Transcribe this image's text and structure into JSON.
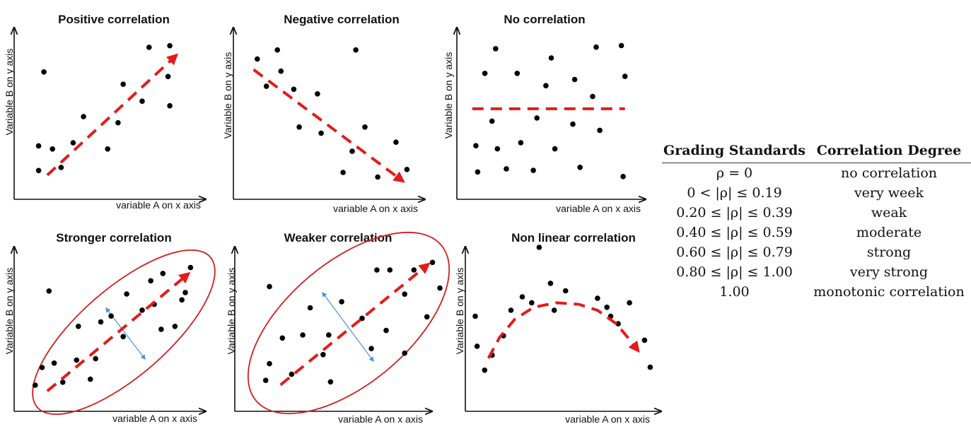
{
  "chart_data": [
    {
      "type": "scatter",
      "title": "Positive correlation",
      "xlabel": "variable A on x axis",
      "ylabel": "Variable B on y axis",
      "xlim": [
        0,
        10
      ],
      "ylim": [
        0,
        10
      ],
      "points": [
        [
          0.6,
          1.5
        ],
        [
          0.6,
          3.1
        ],
        [
          0.9,
          7.9
        ],
        [
          1.4,
          2.9
        ],
        [
          1.9,
          1.7
        ],
        [
          2.6,
          3.3
        ],
        [
          3.2,
          5.0
        ],
        [
          4.6,
          2.9
        ],
        [
          5.2,
          4.6
        ],
        [
          5.5,
          7.1
        ],
        [
          6.6,
          6.0
        ],
        [
          7.0,
          9.5
        ],
        [
          8.2,
          9.6
        ],
        [
          8.2,
          5.7
        ],
        [
          8.1,
          7.6
        ]
      ],
      "trend": [
        [
          1.1,
          1.2
        ],
        [
          8.5,
          8.9
        ]
      ]
    },
    {
      "type": "scatter",
      "title": "Negative correlation",
      "xlabel": "variable A on x axis",
      "ylabel": "Variable B on y axis",
      "xlim": [
        0,
        10
      ],
      "ylim": [
        0,
        10
      ],
      "points": [
        [
          1.0,
          8.9
        ],
        [
          1.5,
          7.1
        ],
        [
          2.1,
          9.5
        ],
        [
          2.3,
          8.1
        ],
        [
          3.0,
          6.9
        ],
        [
          3.3,
          4.4
        ],
        [
          4.3,
          6.6
        ],
        [
          4.5,
          4.0
        ],
        [
          5.7,
          1.4
        ],
        [
          6.2,
          2.8
        ],
        [
          6.4,
          9.5
        ],
        [
          6.9,
          4.4
        ],
        [
          7.6,
          1.1
        ],
        [
          8.6,
          3.4
        ],
        [
          9.2,
          1.6
        ]
      ],
      "trend": [
        [
          0.8,
          8.2
        ],
        [
          8.9,
          0.9
        ]
      ]
    },
    {
      "type": "scatter",
      "title": "No correlation",
      "xlabel": "variable A on x axis",
      "ylabel": "Variable B on y axis",
      "xlim": [
        0,
        10
      ],
      "ylim": [
        0,
        10
      ],
      "points": [
        [
          0.9,
          3.2
        ],
        [
          1.0,
          1.5
        ],
        [
          1.4,
          7.9
        ],
        [
          1.8,
          4.8
        ],
        [
          2.0,
          9.5
        ],
        [
          2.1,
          3.0
        ],
        [
          2.6,
          1.7
        ],
        [
          3.2,
          7.9
        ],
        [
          3.4,
          3.4
        ],
        [
          4.1,
          1.6
        ],
        [
          4.3,
          5.0
        ],
        [
          4.8,
          7.1
        ],
        [
          5.1,
          8.9
        ],
        [
          5.3,
          3.0
        ],
        [
          6.3,
          4.6
        ],
        [
          6.4,
          7.5
        ],
        [
          6.7,
          1.8
        ],
        [
          7.4,
          6.4
        ],
        [
          7.6,
          9.6
        ],
        [
          7.8,
          4.2
        ],
        [
          9.0,
          9.7
        ],
        [
          9.1,
          1.2
        ],
        [
          9.2,
          7.7
        ]
      ],
      "trend": [
        [
          0.7,
          5.6
        ],
        [
          9.2,
          5.6
        ]
      ]
    },
    {
      "type": "scatter",
      "title": "Stronger correlation",
      "xlabel": "variable A on x axis",
      "ylabel": "Variable B on y axis",
      "xlim": [
        0,
        10
      ],
      "ylim": [
        0,
        10
      ],
      "points": [
        [
          0.4,
          1.3
        ],
        [
          0.8,
          2.5
        ],
        [
          1.2,
          7.7
        ],
        [
          1.5,
          2.8
        ],
        [
          2.0,
          1.5
        ],
        [
          2.8,
          3.0
        ],
        [
          2.9,
          5.3
        ],
        [
          3.6,
          1.7
        ],
        [
          3.9,
          3.1
        ],
        [
          4.2,
          5.6
        ],
        [
          4.8,
          6.0
        ],
        [
          5.5,
          4.6
        ],
        [
          5.7,
          7.5
        ],
        [
          6.6,
          6.4
        ],
        [
          7.1,
          8.4
        ],
        [
          7.3,
          6.8
        ],
        [
          7.7,
          5.1
        ],
        [
          7.8,
          8.9
        ],
        [
          8.5,
          5.3
        ],
        [
          8.9,
          7.1
        ],
        [
          9.1,
          7.6
        ],
        [
          9.4,
          9.3
        ]
      ],
      "trend": [
        [
          1.1,
          0.9
        ],
        [
          9.2,
          8.8
        ]
      ]
    },
    {
      "type": "scatter",
      "title": "Weaker correlation",
      "xlabel": "variable A on x axis",
      "ylabel": "Variable B on y axis",
      "xlim": [
        0,
        10
      ],
      "ylim": [
        0,
        10
      ],
      "points": [
        [
          0.6,
          1.3
        ],
        [
          0.8,
          2.4
        ],
        [
          0.8,
          7.5
        ],
        [
          1.5,
          4.1
        ],
        [
          2.0,
          1.7
        ],
        [
          2.6,
          4.3
        ],
        [
          3.0,
          6.1
        ],
        [
          3.7,
          3.0
        ],
        [
          4.0,
          4.3
        ],
        [
          4.1,
          1.2
        ],
        [
          4.7,
          6.5
        ],
        [
          5.8,
          5.4
        ],
        [
          6.3,
          3.4
        ],
        [
          6.6,
          8.6
        ],
        [
          7.1,
          4.6
        ],
        [
          7.3,
          8.6
        ],
        [
          8.1,
          3.1
        ],
        [
          8.1,
          7.0
        ],
        [
          8.6,
          8.6
        ],
        [
          9.3,
          5.5
        ],
        [
          9.6,
          9.1
        ],
        [
          10.0,
          7.4
        ]
      ],
      "trend": [
        [
          1.4,
          1.0
        ],
        [
          9.3,
          8.9
        ]
      ]
    },
    {
      "type": "scatter",
      "title": "Non linear correlation",
      "xlabel": "variable A on x axis",
      "ylabel": "Variable B on y axis",
      "xlim": [
        0,
        10
      ],
      "ylim": [
        0,
        10
      ],
      "points": [
        [
          0.3,
          5.4
        ],
        [
          0.4,
          3.4
        ],
        [
          0.8,
          1.8
        ],
        [
          1.2,
          2.8
        ],
        [
          1.8,
          4.1
        ],
        [
          2.2,
          5.8
        ],
        [
          2.8,
          6.7
        ],
        [
          3.3,
          6.3
        ],
        [
          3.7,
          10.0
        ],
        [
          4.3,
          7.6
        ],
        [
          4.5,
          5.8
        ],
        [
          5.1,
          7.1
        ],
        [
          6.8,
          6.6
        ],
        [
          7.3,
          6.0
        ],
        [
          7.5,
          5.4
        ],
        [
          7.9,
          4.9
        ],
        [
          8.5,
          6.3
        ],
        [
          8.8,
          3.4
        ],
        [
          9.3,
          3.8
        ],
        [
          9.6,
          2.0
        ]
      ],
      "trend_curve": [
        [
          1.0,
          2.6
        ],
        [
          1.6,
          4.0
        ],
        [
          2.4,
          5.2
        ],
        [
          3.4,
          6.0
        ],
        [
          4.6,
          6.3
        ],
        [
          5.8,
          6.2
        ],
        [
          6.8,
          5.8
        ],
        [
          7.8,
          4.9
        ],
        [
          8.4,
          4.0
        ],
        [
          8.9,
          3.2
        ]
      ]
    }
  ],
  "grading_table": {
    "headers": [
      "Grading Standards",
      "Correlation Degree"
    ],
    "rows": [
      [
        "ρ = 0",
        "no correlation"
      ],
      [
        "0 < |ρ| ≤ 0.19",
        "very week"
      ],
      [
        "0.20 ≤ |ρ| ≤ 0.39",
        "weak"
      ],
      [
        "0.40 ≤ |ρ| ≤ 0.59",
        "moderate"
      ],
      [
        "0.60 ≤ |ρ| ≤ 0.79",
        "strong"
      ],
      [
        "0.80 ≤ |ρ| ≤ 1.00",
        "very strong"
      ],
      [
        "1.00",
        "monotonic correlation"
      ]
    ]
  },
  "colors": {
    "trend": "#e31b1b",
    "ellipse": "#d21f1f",
    "spread_arrow": "#4a90d9",
    "points": "#000000"
  }
}
